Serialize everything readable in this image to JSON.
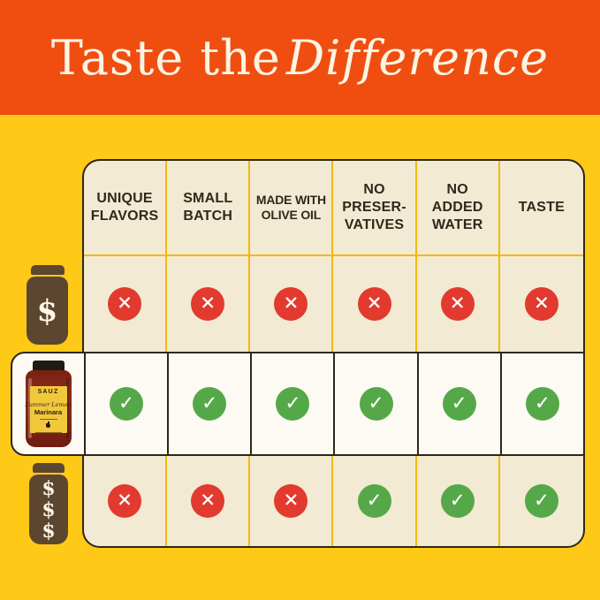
{
  "banner": {
    "title_regular": "Taste the",
    "title_italic": "Difference"
  },
  "table": {
    "columns": [
      {
        "label": "UNIQUE\nFLAVORS"
      },
      {
        "label": "SMALL\nBATCH"
      },
      {
        "label": "MADE WITH\nOLIVE OIL"
      },
      {
        "label": "NO\nPRESER-\nVATIVES"
      },
      {
        "label": "NO\nADDED\nWATER"
      },
      {
        "label": "TASTE"
      }
    ],
    "rows": [
      {
        "name": "cheap-competitor",
        "price_label": "$",
        "marks": [
          "cross",
          "cross",
          "cross",
          "cross",
          "cross",
          "cross"
        ]
      },
      {
        "name": "sauz-product",
        "product": {
          "brand": "SAUZ",
          "variety": "Summer Lemon",
          "name": "Marinara"
        },
        "marks": [
          "check",
          "check",
          "check",
          "check",
          "check",
          "check"
        ]
      },
      {
        "name": "expensive-competitor",
        "price_label": "$$$",
        "marks": [
          "cross",
          "cross",
          "cross",
          "check",
          "check",
          "check"
        ]
      }
    ]
  },
  "icons": {
    "check_glyph": "✓",
    "cross_glyph": "✕",
    "dollar_glyph": "$"
  },
  "colors": {
    "banner_orange": "#F04E11",
    "background_yellow": "#FFC917",
    "cell_cream": "#F2EAD3",
    "divider_gold": "#F2B90D",
    "border_dark": "#2D2817",
    "highlight_band": "#FCFAF2",
    "cross_red": "#E23A2E",
    "check_green": "#55A848",
    "jar_brown": "#5C4630",
    "label_yellow": "#F2C83B",
    "title_cream": "#FCF5E3"
  },
  "chart_data": {
    "type": "table",
    "title": "Taste the Difference",
    "columns": [
      "UNIQUE FLAVORS",
      "SMALL BATCH",
      "MADE WITH OLIVE OIL",
      "NO PRESERVATIVES",
      "NO ADDED WATER",
      "TASTE"
    ],
    "rows": [
      {
        "label": "$ (cheap jar)",
        "values": [
          "no",
          "no",
          "no",
          "no",
          "no",
          "no"
        ]
      },
      {
        "label": "SAUZ Summer Lemon Marinara",
        "values": [
          "yes",
          "yes",
          "yes",
          "yes",
          "yes",
          "yes"
        ]
      },
      {
        "label": "$$$ (expensive jar)",
        "values": [
          "no",
          "no",
          "no",
          "yes",
          "yes",
          "yes"
        ]
      }
    ],
    "legend_position": "none",
    "notes": "yes = green check circle, no = red cross circle; middle row highlighted white"
  }
}
